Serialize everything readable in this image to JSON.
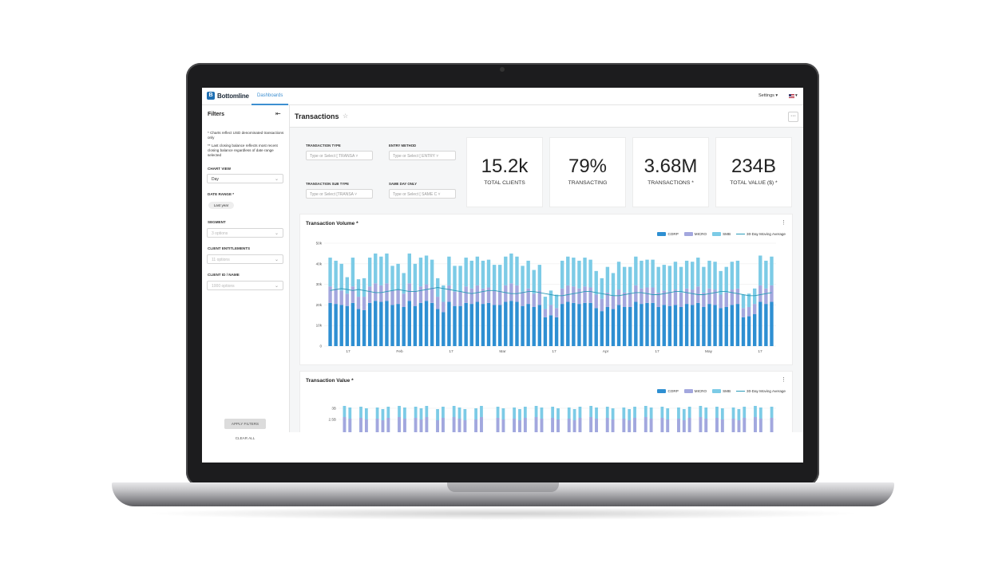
{
  "app": {
    "brand": "Bottomline",
    "brand_mark": "B",
    "nav_tab": "Dashboards",
    "settings_label": "Settings ▾",
    "locale_caret": "▾"
  },
  "sidebar": {
    "title": "Filters",
    "collapse_icon": "collapse-left-icon",
    "note1": "* Charts reflect USD denominated transactions only",
    "note2": "** Last closing balance reflects most recent closing balance regardless of date range selected",
    "chart_view_label": "CHART VIEW",
    "chart_view_value": "Day",
    "date_range_label": "DATE RANGE *",
    "date_range_chip": "Last year",
    "segment_label": "SEGMENT",
    "segment_placeholder": "3 options",
    "entitlements_label": "CLIENT ENTITLEMENTS",
    "entitlements_placeholder": "11 options",
    "client_label": "CLIENT ID / NAME",
    "client_placeholder": "1000 options",
    "apply_label": "APPLY FILTERS",
    "clear_label": "CLEAR ALL"
  },
  "header": {
    "title": "Transactions",
    "more_label": "···"
  },
  "filters": {
    "transaction_type_label": "TRANSACTION TYPE",
    "transaction_type_placeholder": "Type or Select [ TRANSA ˅",
    "entry_method_label": "ENTRY METHOD",
    "entry_method_placeholder": "Type or Select [ ENTRY ˅",
    "sub_type_label": "TRANSACTION SUB TYPE",
    "sub_type_placeholder": "Type or Select [TRANSA ˅",
    "same_day_label": "SAME DAY ONLY",
    "same_day_placeholder": "Type or Select [ SAME C ˅"
  },
  "kpis": [
    {
      "value": "15.2k",
      "label": "TOTAL CLIENTS"
    },
    {
      "value": "79%",
      "label": "TRANSACTING"
    },
    {
      "value": "3.68M",
      "label": "TRANSACTIONS *"
    },
    {
      "value": "234B",
      "label": "TOTAL VALUE ($) *"
    }
  ],
  "colors": {
    "corp": "#2e8fd2",
    "micro": "#a3a7de",
    "smb": "#7ccbe6",
    "moving_avg": "#2a9bb8"
  },
  "legend": {
    "corp": "CORP",
    "micro": "MICRO",
    "smb": "SMB",
    "moving_avg": "30-Day Moving Average"
  },
  "chart_data": [
    {
      "type": "bar",
      "title": "Transaction Volume *",
      "stacked": true,
      "ylim": [
        0,
        50000
      ],
      "y_ticks": [
        "0",
        "10k",
        "20k",
        "30k",
        "40k",
        "50k"
      ],
      "x_ticks": [
        "17",
        "Feb",
        "17",
        "Mar",
        "17",
        "Apr",
        "17",
        "May",
        "17"
      ],
      "series": [
        {
          "name": "CORP",
          "values": [
            21000,
            20500,
            20000,
            19500,
            21000,
            18000,
            17500,
            21000,
            22000,
            21500,
            22000,
            20000,
            20500,
            19000,
            22000,
            19500,
            21000,
            22000,
            21000,
            18000,
            16500,
            21500,
            19500,
            19500,
            21000,
            20500,
            21500,
            20500,
            21000,
            20000,
            20000,
            21500,
            22000,
            21500,
            19500,
            20500,
            19000,
            20000,
            14000,
            15000,
            14000,
            20500,
            21500,
            21000,
            20500,
            21000,
            21000,
            18500,
            17000,
            19000,
            18000,
            20000,
            19000,
            19000,
            21500,
            20500,
            21000,
            21000,
            19000,
            20000,
            19500,
            20000,
            19000,
            20500,
            20000,
            21000,
            19000,
            20500,
            20000,
            18500,
            19000,
            20000,
            20500,
            14000,
            14500,
            15500,
            21500,
            20500,
            21500
          ]
        },
        {
          "name": "MICRO",
          "values": [
            8000,
            7500,
            7000,
            6000,
            8000,
            6000,
            6500,
            8000,
            8500,
            8000,
            8500,
            7000,
            7000,
            6500,
            8500,
            7500,
            8000,
            8000,
            7500,
            6000,
            5000,
            8000,
            7000,
            7000,
            8000,
            7500,
            8000,
            7500,
            7500,
            7000,
            7000,
            8000,
            8500,
            8000,
            7000,
            7500,
            6500,
            7000,
            4000,
            5000,
            4500,
            7500,
            8000,
            8000,
            7500,
            8000,
            7500,
            6500,
            6000,
            7000,
            6500,
            7500,
            7000,
            7000,
            8000,
            7500,
            7500,
            7500,
            7000,
            7000,
            7000,
            7500,
            7000,
            7500,
            7500,
            8000,
            7000,
            7500,
            7500,
            6500,
            7000,
            7500,
            7500,
            4500,
            4500,
            5000,
            8000,
            7500,
            8000
          ]
        },
        {
          "name": "SMB",
          "values": [
            14000,
            13500,
            13000,
            8000,
            14000,
            8500,
            9000,
            14000,
            14500,
            14000,
            14500,
            12000,
            12500,
            10000,
            14500,
            13000,
            14000,
            14000,
            13500,
            9000,
            8000,
            14000,
            12500,
            12500,
            14000,
            13500,
            14000,
            13500,
            13500,
            12500,
            12500,
            14000,
            14500,
            14000,
            12500,
            13500,
            11500,
            12500,
            6000,
            7000,
            6500,
            13500,
            14000,
            14000,
            13500,
            14000,
            13500,
            11500,
            10000,
            12500,
            11000,
            13500,
            12500,
            12500,
            14000,
            13500,
            13500,
            13500,
            12500,
            12500,
            12500,
            13500,
            12500,
            13500,
            13500,
            14000,
            12500,
            13500,
            13500,
            11500,
            12500,
            13500,
            13500,
            6500,
            6500,
            7500,
            14500,
            13500,
            14000
          ]
        },
        {
          "name": "30-Day Moving Average",
          "type": "line",
          "values": [
            27000,
            27500,
            28000,
            27500,
            27000,
            27500,
            27000,
            26500,
            26000,
            26000,
            26500,
            27000,
            27500,
            27000,
            26500,
            26500,
            27000,
            27500,
            28000,
            28500,
            28000,
            27500,
            27000,
            26500,
            26000,
            25500,
            26000,
            26500,
            27000,
            27000,
            26500,
            26000,
            25500,
            25500,
            26000,
            26500,
            26500,
            26000,
            25500,
            25000,
            24500,
            24500,
            25000,
            25500,
            26000,
            26500,
            26500,
            26000,
            25500,
            25000,
            24500,
            24500,
            25000,
            25500,
            26000,
            26000,
            25500,
            25000,
            25000,
            25500,
            26000,
            26500,
            26500,
            26000,
            25500,
            25000,
            25000,
            25500,
            26000,
            26500,
            26500,
            26000,
            25500,
            25000,
            24500,
            24500,
            25000,
            25500,
            26000
          ]
        }
      ]
    },
    {
      "type": "bar",
      "title": "Transaction Value *",
      "stacked": true,
      "y_ticks": [
        "3B",
        "2.5B"
      ],
      "series": [
        {
          "name": "CORP"
        },
        {
          "name": "MICRO"
        },
        {
          "name": "SMB"
        },
        {
          "name": "30-Day Moving Average",
          "type": "line"
        }
      ]
    }
  ]
}
